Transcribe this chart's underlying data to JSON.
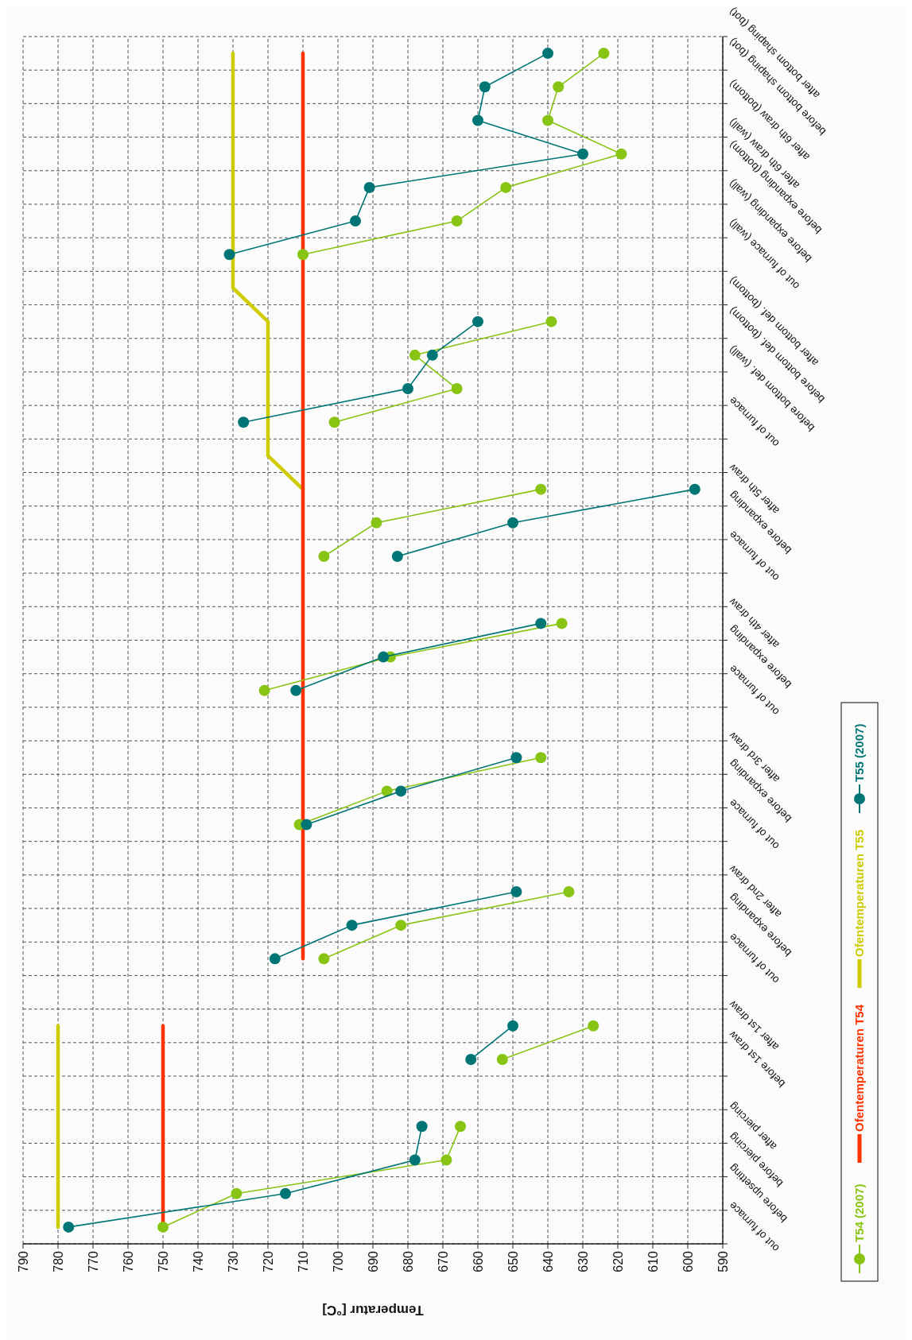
{
  "chart_data": {
    "type": "line",
    "orientation": "horizontal",
    "xlabel": "Temperatur [°C]",
    "categories": [
      "after bottom shaping (bot)",
      "before bottom shaping (bot)",
      "after 6th draw (bottom)",
      "after 6th draw (wall)",
      "before expanding (bottom)",
      "before expanding (wall)",
      "out of furnace (wall)",
      null,
      "after bottom def. (bottom)",
      "before bottom def. (bottom)",
      "before bottom def. (wall)",
      "out of furnace",
      null,
      "after 5th draw",
      "before expanding",
      "out of furnace",
      null,
      "after 4th draw",
      "before expanding",
      "out of furnace",
      null,
      "after 3rd draw",
      "before expanding",
      "out of furnace",
      null,
      "after 2nd draw",
      "before expanding",
      "out of furnace",
      null,
      "after 1st draw",
      "before 1st draw",
      null,
      "after piercing",
      "before piercing",
      "before upsetting",
      "out of furnace"
    ],
    "series": [
      {
        "name": "T54 (2007)",
        "color": "#88c414",
        "marker": "circle",
        "values": [
          624,
          637,
          640,
          619,
          652,
          666,
          710,
          null,
          639,
          678,
          666,
          701,
          null,
          642,
          689,
          704,
          null,
          636,
          685,
          721,
          null,
          642,
          686,
          711,
          null,
          634,
          682,
          704,
          null,
          627,
          653,
          null,
          665,
          669,
          729,
          750
        ]
      },
      {
        "name": "Ofentemperaturen T54",
        "color": "#ff3300",
        "marker": "none",
        "values": [
          710,
          710,
          710,
          710,
          710,
          710,
          710,
          710,
          710,
          710,
          710,
          710,
          710,
          710,
          710,
          710,
          710,
          710,
          710,
          710,
          710,
          710,
          710,
          710,
          710,
          710,
          710,
          710,
          null,
          750,
          750,
          750,
          750,
          750,
          750,
          750
        ]
      },
      {
        "name": "Ofentemperaturen T55",
        "color": "#cccc00",
        "marker": "none",
        "values": [
          730,
          730,
          730,
          730,
          730,
          730,
          730,
          730,
          720,
          720,
          720,
          720,
          720,
          710,
          null,
          null,
          null,
          null,
          null,
          null,
          null,
          null,
          null,
          null,
          null,
          null,
          null,
          null,
          null,
          780,
          780,
          780,
          780,
          780,
          780,
          780
        ]
      },
      {
        "name": "T55 (2007)",
        "color": "#007575",
        "marker": "circle",
        "values": [
          640,
          658,
          660,
          630,
          691,
          695,
          731,
          null,
          660,
          673,
          680,
          727,
          null,
          598,
          650,
          683,
          null,
          642,
          687,
          712,
          null,
          649,
          682,
          709,
          null,
          649,
          696,
          718,
          null,
          650,
          662,
          null,
          676,
          678,
          715,
          777
        ]
      }
    ],
    "xlim": [
      790,
      590
    ],
    "xticks": [
      790,
      780,
      770,
      760,
      750,
      740,
      730,
      720,
      710,
      700,
      690,
      680,
      670,
      660,
      650,
      640,
      630,
      620,
      610,
      600,
      590
    ],
    "grid": true,
    "legend": "bottom",
    "line_style": "solid"
  }
}
